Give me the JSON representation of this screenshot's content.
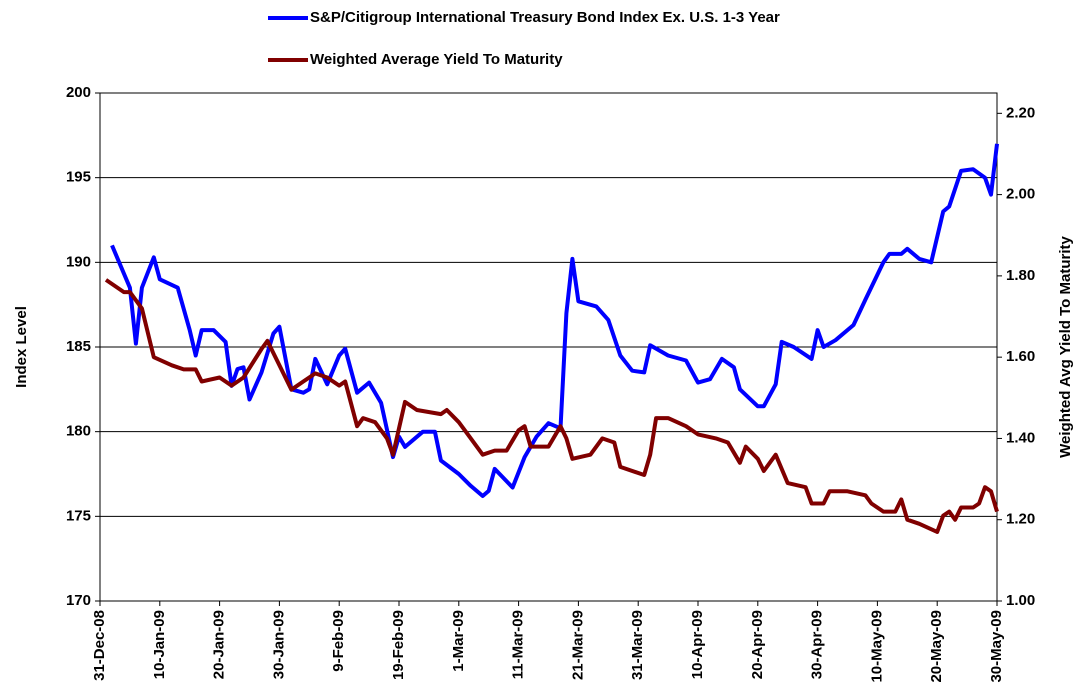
{
  "chart_data": {
    "type": "line",
    "xlabel": null,
    "ylabel": "Index Level",
    "y2label": "Weighted Avg Yield To Maturity",
    "xlim": [
      "2008-12-31",
      "2009-05-30"
    ],
    "xticks": [
      {
        "value": "2008-12-31",
        "label": "31-Dec-08"
      },
      {
        "value": "2009-01-10",
        "label": "10-Jan-09"
      },
      {
        "value": "2009-01-20",
        "label": "20-Jan-09"
      },
      {
        "value": "2009-01-30",
        "label": "30-Jan-09"
      },
      {
        "value": "2009-02-09",
        "label": "9-Feb-09"
      },
      {
        "value": "2009-02-19",
        "label": "19-Feb-09"
      },
      {
        "value": "2009-03-01",
        "label": "1-Mar-09"
      },
      {
        "value": "2009-03-11",
        "label": "11-Mar-09"
      },
      {
        "value": "2009-03-21",
        "label": "21-Mar-09"
      },
      {
        "value": "2009-03-31",
        "label": "31-Mar-09"
      },
      {
        "value": "2009-04-10",
        "label": "10-Apr-09"
      },
      {
        "value": "2009-04-20",
        "label": "20-Apr-09"
      },
      {
        "value": "2009-04-30",
        "label": "30-Apr-09"
      },
      {
        "value": "2009-05-10",
        "label": "10-May-09"
      },
      {
        "value": "2009-05-20",
        "label": "20-May-09"
      },
      {
        "value": "2009-05-30",
        "label": "30-May-09"
      }
    ],
    "ylim": [
      170,
      200
    ],
    "yticks": [
      170,
      175,
      180,
      185,
      190,
      195,
      200
    ],
    "y2lim": [
      1.0,
      2.25
    ],
    "y2ticks": [
      {
        "value": 1.0,
        "label": "1.00"
      },
      {
        "value": 1.2,
        "label": "1.20"
      },
      {
        "value": 1.4,
        "label": "1.40"
      },
      {
        "value": 1.6,
        "label": "1.60"
      },
      {
        "value": 1.8,
        "label": "1.80"
      },
      {
        "value": 2.0,
        "label": "2.00"
      },
      {
        "value": 2.2,
        "label": "2.20"
      }
    ],
    "grid": true,
    "legend": "top",
    "series": [
      {
        "name": "S&P/Citigroup International Treasury Bond Index Ex. U.S. 1-3 Year",
        "color": "#0000ff",
        "axis": "y",
        "x": [
          "2009-01-02",
          "2009-01-05",
          "2009-01-06",
          "2009-01-07",
          "2009-01-09",
          "2009-01-10",
          "2009-01-13",
          "2009-01-15",
          "2009-01-16",
          "2009-01-17",
          "2009-01-19",
          "2009-01-21",
          "2009-01-22",
          "2009-01-23",
          "2009-01-24",
          "2009-01-25",
          "2009-01-27",
          "2009-01-29",
          "2009-01-30",
          "2009-02-01",
          "2009-02-03",
          "2009-02-04",
          "2009-02-05",
          "2009-02-07",
          "2009-02-09",
          "2009-02-10",
          "2009-02-12",
          "2009-02-14",
          "2009-02-16",
          "2009-02-18",
          "2009-02-19",
          "2009-02-20",
          "2009-02-23",
          "2009-02-25",
          "2009-02-26",
          "2009-03-01",
          "2009-03-03",
          "2009-03-05",
          "2009-03-06",
          "2009-03-07",
          "2009-03-10",
          "2009-03-12",
          "2009-03-14",
          "2009-03-16",
          "2009-03-18",
          "2009-03-19",
          "2009-03-20",
          "2009-03-21",
          "2009-03-24",
          "2009-03-26",
          "2009-03-28",
          "2009-03-30",
          "2009-04-01",
          "2009-04-02",
          "2009-04-05",
          "2009-04-08",
          "2009-04-10",
          "2009-04-12",
          "2009-04-14",
          "2009-04-16",
          "2009-04-17",
          "2009-04-20",
          "2009-04-21",
          "2009-04-23",
          "2009-04-24",
          "2009-04-26",
          "2009-04-29",
          "2009-04-30",
          "2009-05-01",
          "2009-05-03",
          "2009-05-06",
          "2009-05-08",
          "2009-05-11",
          "2009-05-12",
          "2009-05-14",
          "2009-05-15",
          "2009-05-17",
          "2009-05-19",
          "2009-05-21",
          "2009-05-22",
          "2009-05-24",
          "2009-05-26",
          "2009-05-28",
          "2009-05-29",
          "2009-05-30"
        ],
        "values": [
          191,
          188.5,
          185.2,
          188.5,
          190.3,
          189,
          188.5,
          186,
          184.5,
          186,
          186,
          185.3,
          182.7,
          183.7,
          183.8,
          181.9,
          183.5,
          185.8,
          186.2,
          182.5,
          182.3,
          182.5,
          184.3,
          182.8,
          184.5,
          184.9,
          182.3,
          182.9,
          181.7,
          178.5,
          179.7,
          179.1,
          180,
          180,
          178.3,
          177.5,
          176.8,
          176.2,
          176.5,
          177.8,
          176.7,
          178.5,
          179.7,
          180.5,
          180.2,
          187,
          190.2,
          187.7,
          187.4,
          186.6,
          184.5,
          183.6,
          183.5,
          185.1,
          184.5,
          184.2,
          182.9,
          183.1,
          184.3,
          183.8,
          182.5,
          181.5,
          181.5,
          182.8,
          185.3,
          185,
          184.3,
          186,
          185,
          185.4,
          186.3,
          187.8,
          190,
          190.5,
          190.5,
          190.8,
          190.2,
          190,
          193,
          193.3,
          195.4,
          195.5,
          195,
          194,
          197
        ]
      },
      {
        "name": "Weighted Average Yield To Maturity",
        "color": "#800000",
        "axis": "y2",
        "x": [
          "2009-01-01",
          "2009-01-04",
          "2009-01-05",
          "2009-01-07",
          "2009-01-09",
          "2009-01-12",
          "2009-01-14",
          "2009-01-16",
          "2009-01-17",
          "2009-01-20",
          "2009-01-22",
          "2009-01-24",
          "2009-01-27",
          "2009-01-28",
          "2009-01-30",
          "2009-02-01",
          "2009-02-03",
          "2009-02-05",
          "2009-02-07",
          "2009-02-09",
          "2009-02-10",
          "2009-02-12",
          "2009-02-13",
          "2009-02-15",
          "2009-02-17",
          "2009-02-18",
          "2009-02-20",
          "2009-02-22",
          "2009-02-26",
          "2009-02-27",
          "2009-03-01",
          "2009-03-03",
          "2009-03-05",
          "2009-03-07",
          "2009-03-09",
          "2009-03-11",
          "2009-03-12",
          "2009-03-13",
          "2009-03-16",
          "2009-03-18",
          "2009-03-19",
          "2009-03-20",
          "2009-03-23",
          "2009-03-25",
          "2009-03-27",
          "2009-03-28",
          "2009-04-01",
          "2009-04-02",
          "2009-04-03",
          "2009-04-05",
          "2009-04-08",
          "2009-04-10",
          "2009-04-13",
          "2009-04-15",
          "2009-04-17",
          "2009-04-18",
          "2009-04-20",
          "2009-04-21",
          "2009-04-23",
          "2009-04-25",
          "2009-04-28",
          "2009-04-29",
          "2009-05-01",
          "2009-05-02",
          "2009-05-05",
          "2009-05-08",
          "2009-05-09",
          "2009-05-11",
          "2009-05-13",
          "2009-05-14",
          "2009-05-15",
          "2009-05-17",
          "2009-05-20",
          "2009-05-21",
          "2009-05-22",
          "2009-05-23",
          "2009-05-24",
          "2009-05-26",
          "2009-05-27",
          "2009-05-28",
          "2009-05-29",
          "2009-05-30"
        ],
        "values": [
          1.79,
          1.76,
          1.76,
          1.72,
          1.6,
          1.58,
          1.57,
          1.57,
          1.54,
          1.55,
          1.53,
          1.55,
          1.62,
          1.64,
          1.58,
          1.52,
          1.54,
          1.56,
          1.55,
          1.53,
          1.54,
          1.43,
          1.45,
          1.44,
          1.4,
          1.36,
          1.49,
          1.47,
          1.46,
          1.47,
          1.44,
          1.4,
          1.36,
          1.37,
          1.37,
          1.42,
          1.43,
          1.38,
          1.38,
          1.43,
          1.4,
          1.35,
          1.36,
          1.4,
          1.39,
          1.33,
          1.31,
          1.36,
          1.45,
          1.45,
          1.43,
          1.41,
          1.4,
          1.39,
          1.34,
          1.38,
          1.35,
          1.32,
          1.36,
          1.29,
          1.28,
          1.24,
          1.24,
          1.27,
          1.27,
          1.26,
          1.24,
          1.22,
          1.22,
          1.25,
          1.2,
          1.19,
          1.17,
          1.21,
          1.22,
          1.2,
          1.23,
          1.23,
          1.24,
          1.28,
          1.27,
          1.22
        ]
      }
    ]
  }
}
